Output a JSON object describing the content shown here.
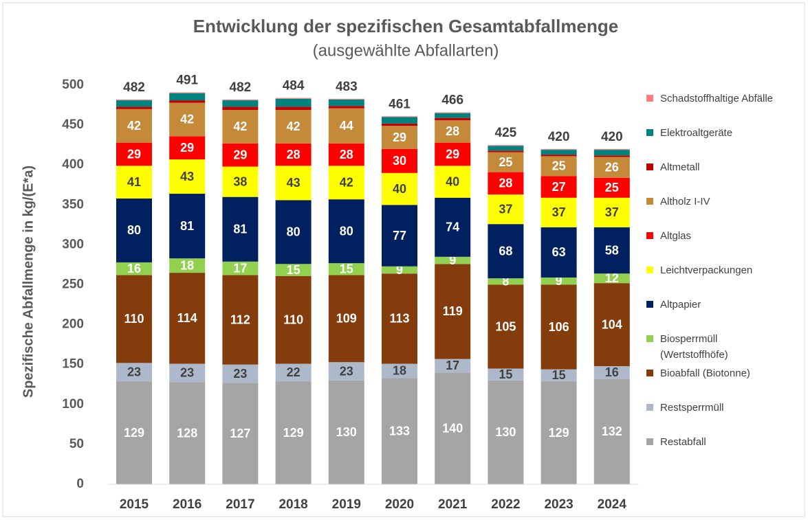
{
  "chart_data": {
    "type": "stacked_bar",
    "title": "Entwicklung der spezifischen Gesamtabfallmenge",
    "subtitle": "(ausgewählte Abfallarten)",
    "y_label": "Spezifische Abfallmenge in kg/(E*a)",
    "categories": [
      "2015",
      "2016",
      "2017",
      "2018",
      "2019",
      "2020",
      "2021",
      "2022",
      "2023",
      "2024"
    ],
    "totals": [
      482,
      491,
      482,
      484,
      483,
      461,
      466,
      425,
      420,
      420
    ],
    "ylim": [
      0,
      520
    ],
    "yticks": [
      0,
      50,
      100,
      150,
      200,
      250,
      300,
      350,
      400,
      450,
      500
    ],
    "grid": false,
    "legend": "right",
    "series": [
      {
        "name": "Restabfall",
        "color": "#a5a5a5",
        "labels": true,
        "label_color": "#ffffff",
        "values": [
          129,
          128,
          127,
          129,
          130,
          133,
          140,
          130,
          129,
          132
        ]
      },
      {
        "name": "Restsperrmüll",
        "color": "#adb9ca",
        "labels": true,
        "label_color": "#404040",
        "values": [
          23,
          23,
          23,
          22,
          23,
          18,
          17,
          15,
          15,
          16
        ]
      },
      {
        "name": "Bioabfall (Biotonne)",
        "color": "#843c0c",
        "labels": true,
        "label_color": "#ffffff",
        "values": [
          110,
          114,
          112,
          110,
          109,
          113,
          119,
          105,
          106,
          104
        ]
      },
      {
        "name": "Biosperrmüll (Wertstoffhöfe)",
        "color": "#92d050",
        "labels": true,
        "label_color": "#ffffff",
        "values": [
          16,
          18,
          17,
          15,
          15,
          9,
          9,
          8,
          9,
          12
        ]
      },
      {
        "name": "Altpapier",
        "color": "#002060",
        "labels": true,
        "label_color": "#ffffff",
        "values": [
          80,
          81,
          81,
          80,
          80,
          77,
          74,
          68,
          63,
          58
        ]
      },
      {
        "name": "Leichtverpackungen",
        "color": "#ffff00",
        "labels": true,
        "label_color": "#404040",
        "values": [
          41,
          43,
          38,
          43,
          42,
          40,
          40,
          37,
          37,
          37
        ]
      },
      {
        "name": "Altglas",
        "color": "#ff0000",
        "labels": true,
        "label_color": "#ffffff",
        "values": [
          29,
          29,
          29,
          28,
          28,
          30,
          29,
          28,
          27,
          25
        ]
      },
      {
        "name": "Altholz I-IV",
        "color": "#c5893a",
        "labels": true,
        "label_color": "#ffffff",
        "values": [
          42,
          42,
          42,
          42,
          44,
          29,
          28,
          25,
          25,
          26
        ]
      },
      {
        "name": "Altmetall",
        "color": "#c00000",
        "labels": false,
        "values": [
          3,
          3,
          4,
          4,
          3,
          3,
          3,
          2,
          2,
          2
        ]
      },
      {
        "name": "Elektroaltgeräte",
        "color": "#00827f",
        "labels": false,
        "values": [
          8,
          9,
          8,
          10,
          8,
          8,
          6,
          6,
          6,
          7
        ]
      },
      {
        "name": "Schadstoffhaltige Abfälle",
        "color": "#ff7c80",
        "labels": false,
        "values": [
          1,
          1,
          1,
          1,
          1,
          1,
          1,
          1,
          1,
          1
        ]
      }
    ]
  }
}
